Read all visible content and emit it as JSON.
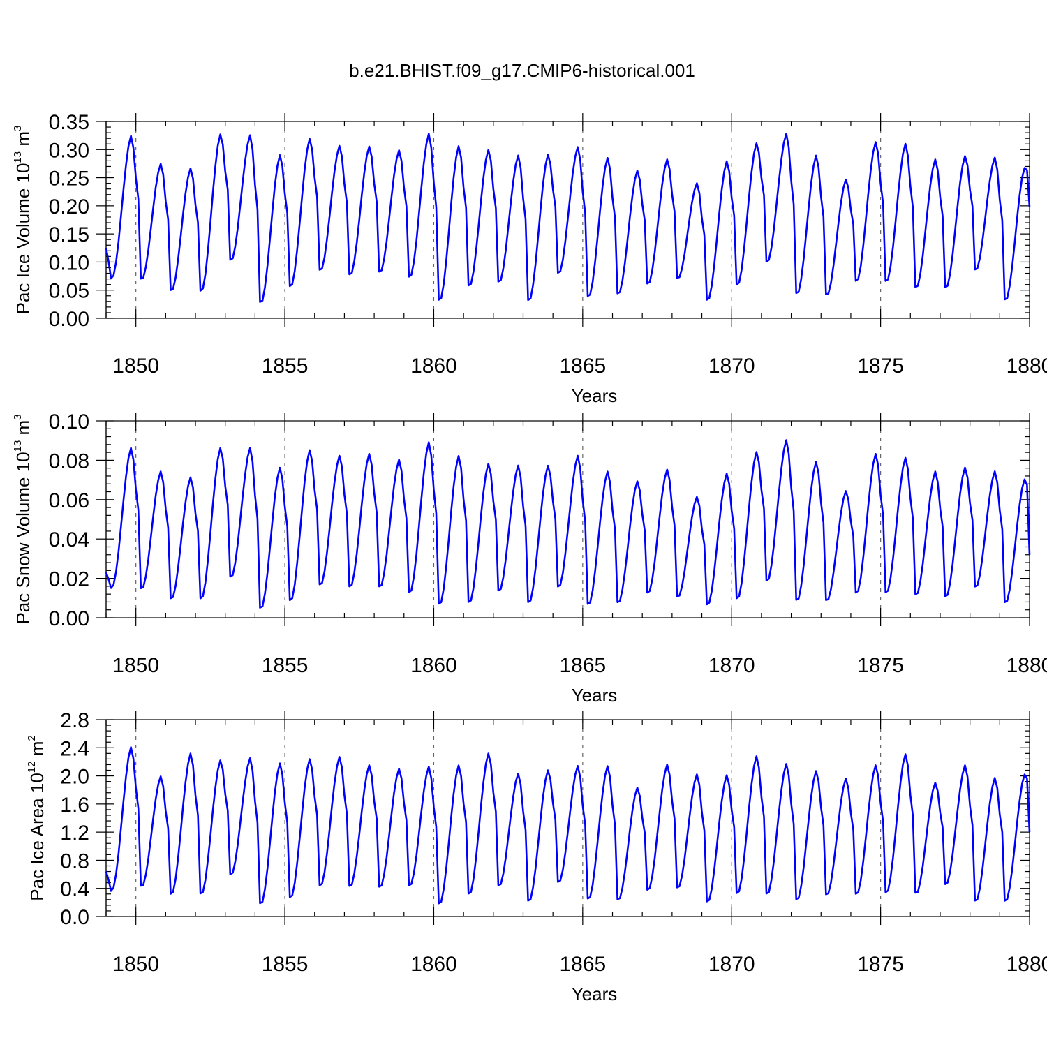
{
  "title": "b.e21.BHIST.f09_g17.CMIP6-historical.001",
  "colors": {
    "series": "#0000ff",
    "grid": "#666666",
    "axis": "#000000"
  },
  "chart_data": [
    {
      "type": "line",
      "id": "ice-volume",
      "ylabel": {
        "main": "Pac Ice Volume 10",
        "exp": "13",
        "unit": " m",
        "unit_exp": "3"
      },
      "xlabel": "Years",
      "xlim": [
        1849,
        1880
      ],
      "ylim": [
        0,
        0.35
      ],
      "yticks": [
        0.0,
        0.05,
        0.1,
        0.15,
        0.2,
        0.25,
        0.3,
        0.35
      ],
      "ytick_labels": [
        "0.00",
        "0.05",
        "0.10",
        "0.15",
        "0.20",
        "0.25",
        "0.30",
        "0.35"
      ],
      "xticks": [
        1850,
        1855,
        1860,
        1865,
        1870,
        1875,
        1880
      ],
      "xtick_labels": [
        "1850",
        "1855",
        "1860",
        "1865",
        "1870",
        "1875",
        "1880"
      ],
      "grid": "dashed vertical at x ticks",
      "annual_max": [
        0.327,
        0.277,
        0.269,
        0.33,
        0.328,
        0.293,
        0.322,
        0.309,
        0.308,
        0.301,
        0.331,
        0.309,
        0.302,
        0.292,
        0.294,
        0.307,
        0.288,
        0.265,
        0.285,
        0.242,
        0.282,
        0.314,
        0.331,
        0.292,
        0.249,
        0.316,
        0.313,
        0.285,
        0.291,
        0.288,
        0.27
      ],
      "annual_min": [
        0.07,
        0.067,
        0.047,
        0.046,
        0.101,
        0.025,
        0.054,
        0.083,
        0.075,
        0.08,
        0.071,
        0.029,
        0.055,
        0.062,
        0.029,
        0.078,
        0.036,
        0.041,
        0.059,
        0.069,
        0.03,
        0.057,
        0.098,
        0.041,
        0.039,
        0.064,
        0.063,
        0.052,
        0.052,
        0.084,
        0.03
      ],
      "start_value": 0.125,
      "end_value": 0.198
    },
    {
      "type": "line",
      "id": "snow-volume",
      "ylabel": {
        "main": "Pac Snow Volume 10",
        "exp": "13",
        "unit": " m",
        "unit_exp": "3"
      },
      "xlabel": "Years",
      "xlim": [
        1849,
        1880
      ],
      "ylim": [
        0,
        0.1
      ],
      "yticks": [
        0.0,
        0.02,
        0.04,
        0.06,
        0.08,
        0.1
      ],
      "ytick_labels": [
        "0.00",
        "0.02",
        "0.04",
        "0.06",
        "0.08",
        "0.10"
      ],
      "xticks": [
        1850,
        1855,
        1860,
        1865,
        1870,
        1875,
        1880
      ],
      "xtick_labels": [
        "1850",
        "1855",
        "1860",
        "1865",
        "1870",
        "1875",
        "1880"
      ],
      "grid": "dashed vertical at x ticks",
      "annual_max": [
        0.087,
        0.075,
        0.072,
        0.087,
        0.087,
        0.077,
        0.086,
        0.083,
        0.084,
        0.081,
        0.09,
        0.083,
        0.079,
        0.078,
        0.078,
        0.083,
        0.075,
        0.07,
        0.076,
        0.062,
        0.074,
        0.085,
        0.091,
        0.08,
        0.065,
        0.084,
        0.082,
        0.075,
        0.077,
        0.075,
        0.071
      ],
      "annual_min": [
        0.015,
        0.014,
        0.009,
        0.009,
        0.02,
        0.004,
        0.008,
        0.016,
        0.015,
        0.015,
        0.012,
        0.006,
        0.007,
        0.013,
        0.007,
        0.015,
        0.006,
        0.007,
        0.012,
        0.01,
        0.006,
        0.009,
        0.018,
        0.008,
        0.008,
        0.012,
        0.012,
        0.011,
        0.01,
        0.015,
        0.007
      ],
      "start_value": 0.023,
      "end_value": 0.032
    },
    {
      "type": "line",
      "id": "ice-area",
      "ylabel": {
        "main": "Pac Ice Area 10",
        "exp": "12",
        "unit": " m",
        "unit_exp": "2"
      },
      "xlabel": "Years",
      "xlim": [
        1849,
        1880
      ],
      "ylim": [
        0,
        2.8
      ],
      "yticks": [
        0.0,
        0.4,
        0.8,
        1.2,
        1.6,
        2.0,
        2.4,
        2.8
      ],
      "ytick_labels": [
        "0.0",
        "0.4",
        "0.8",
        "1.2",
        "1.6",
        "2.0",
        "2.4",
        "2.8"
      ],
      "xticks": [
        1850,
        1855,
        1860,
        1865,
        1870,
        1875,
        1880
      ],
      "xtick_labels": [
        "1850",
        "1855",
        "1860",
        "1865",
        "1870",
        "1875",
        "1880"
      ],
      "grid": "dashed vertical at x ticks",
      "annual_max": [
        2.43,
        2.01,
        2.34,
        2.24,
        2.27,
        2.2,
        2.26,
        2.29,
        2.17,
        2.12,
        2.15,
        2.17,
        2.34,
        2.05,
        2.1,
        2.16,
        2.16,
        1.85,
        2.18,
        2.04,
        2.03,
        2.3,
        2.19,
        2.09,
        1.98,
        2.17,
        2.33,
        1.92,
        2.17,
        1.99,
        2.04
      ],
      "annual_min": [
        0.36,
        0.41,
        0.3,
        0.3,
        0.58,
        0.16,
        0.25,
        0.42,
        0.41,
        0.4,
        0.42,
        0.16,
        0.3,
        0.42,
        0.2,
        0.47,
        0.23,
        0.22,
        0.36,
        0.39,
        0.19,
        0.31,
        0.3,
        0.22,
        0.29,
        0.3,
        0.32,
        0.31,
        0.44,
        0.2,
        0.2
      ],
      "start_value": 0.64,
      "end_value": 1.2
    }
  ]
}
